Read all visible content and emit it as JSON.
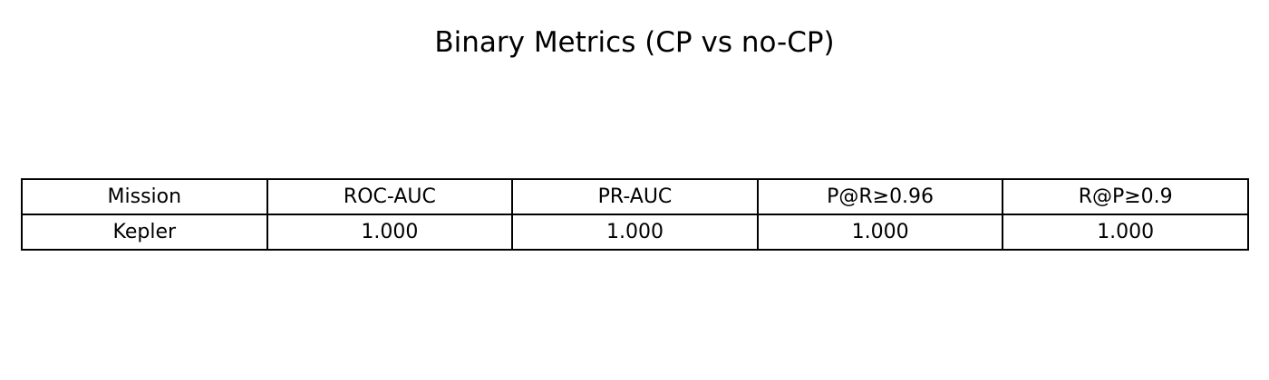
{
  "chart_data": {
    "type": "table",
    "title": "Binary Metrics (CP vs no-CP)",
    "columns": [
      "Mission",
      "ROC-AUC",
      "PR-AUC",
      "P@R≥0.96",
      "R@P≥0.9"
    ],
    "rows": [
      [
        "Kepler",
        "1.000",
        "1.000",
        "1.000",
        "1.000"
      ]
    ]
  }
}
